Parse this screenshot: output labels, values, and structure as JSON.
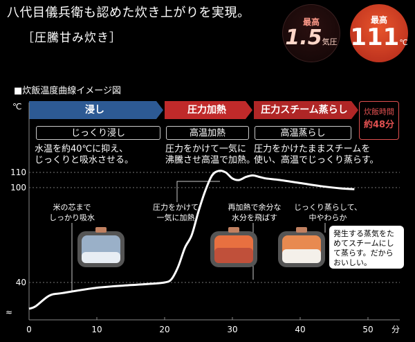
{
  "header": {
    "headline": "八代目儀兵衛も認めた炊き上がりを実現。",
    "subhead": "［圧騰甘み炊き］",
    "badge_pressure": {
      "label": "最高",
      "value": "1.5",
      "unit": "気圧"
    },
    "badge_temp": {
      "label": "最高",
      "value": "111",
      "unit": "℃"
    }
  },
  "chart_title": "■炊飯温度曲線イメージ図",
  "phases": [
    {
      "label": "浸し",
      "sub": "じっくり浸し",
      "desc1": "水温を約40℃に抑え、",
      "desc2": "じっくりと吸水させる。"
    },
    {
      "label": "圧力加熱",
      "sub": "高温加熱",
      "desc1": "圧力をかけて一気に",
      "desc2": "沸騰させ高温で加熱。"
    },
    {
      "label": "圧力スチーム蒸らし",
      "sub": "高温蒸らし",
      "desc1": "圧力をかけたままスチームを",
      "desc2": "使い、高温でじっくり蒸らす。"
    }
  ],
  "cook_time": {
    "label": "炊飯時間",
    "value": "約48分"
  },
  "annotations": {
    "rice_core_1": "米の芯まで",
    "rice_core_2": "しっかり吸水",
    "pressure_1": "圧力をかけて",
    "pressure_2": "一気に加熱",
    "reheat_1": "再加熱で余分な",
    "reheat_2": "水分を飛ばす",
    "steam_1": "じっくり蒸らして、",
    "steam_2": "中やわらか",
    "note": "発生する蒸気をためてスチームにして蒸らす。だからおいしい。"
  },
  "colors": {
    "phase1": "#2d5a94",
    "phase2": "#c02a2a",
    "phase3": "#b02626",
    "accent": "#e05050"
  },
  "chart_data": {
    "type": "line",
    "xlabel": "分",
    "ylabel": "℃",
    "x_ticks": [
      0,
      10,
      20,
      30,
      40,
      50
    ],
    "y_ticks": [
      40,
      100,
      110
    ],
    "xlim": [
      0,
      52
    ],
    "series": [
      {
        "x": [
          0,
          1,
          3,
          5,
          10,
          15,
          18,
          20,
          21,
          22,
          23,
          24,
          25,
          26,
          27,
          28,
          29,
          30,
          31,
          32,
          33,
          34,
          35,
          37,
          40,
          43,
          46,
          48
        ],
        "y": [
          30,
          31,
          35,
          36,
          38,
          39,
          39.5,
          40,
          42,
          50,
          62,
          70,
          85,
          98,
          108,
          111,
          110,
          106,
          105,
          107,
          108,
          107,
          106,
          105,
          103,
          101,
          99.5,
          99
        ]
      }
    ]
  }
}
